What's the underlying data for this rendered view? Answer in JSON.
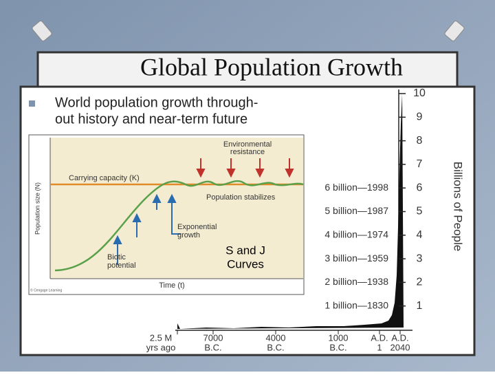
{
  "slide": {
    "title": "Global Population Growth",
    "bullet_lines": [
      "World population growth through-",
      "out history and near-term future"
    ]
  },
  "s_curve": {
    "y_axis_label": "Population size (N)",
    "x_axis_label": "Time (t)",
    "carrying_capacity": "Carrying capacity (K)",
    "environmental_resistance": [
      "Environmental",
      "resistance"
    ],
    "population_stabilizes": "Population stabilizes",
    "exponential_growth": [
      "Exponential",
      "growth"
    ],
    "biotic_potential": [
      "Biotic",
      "potential"
    ],
    "credit": "© Cengage Learning",
    "overlay": [
      "S and J",
      "Curves"
    ]
  },
  "j_curve": {
    "y_axis_label": "Billions of People",
    "yticks": [
      "10",
      "9",
      "8",
      "7",
      "6",
      "5",
      "4",
      "3",
      "2",
      "1"
    ],
    "milestones": [
      "6 billion—1998",
      "5 billion—1987",
      "4 billion—1974",
      "3 billion—1959",
      "2 billion—1938",
      "1 billion—1830"
    ],
    "x_labels": [
      [
        "2.5 M",
        "yrs ago"
      ],
      [
        "7000",
        "B.C."
      ],
      [
        "4000",
        "B.C."
      ],
      [
        "1000",
        "B.C."
      ],
      [
        "A.D.",
        "1"
      ],
      [
        "A.D.",
        "2040"
      ]
    ]
  }
}
